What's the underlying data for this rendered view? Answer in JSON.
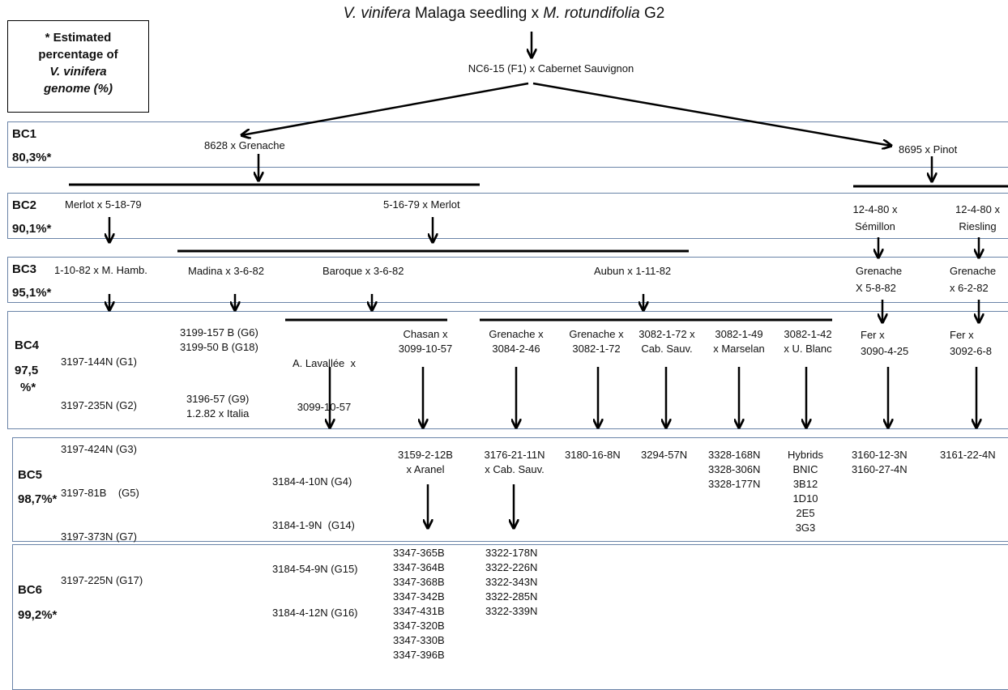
{
  "title": {
    "sp1": "V. vinifera",
    "p1": " Malaga seedling x ",
    "sp2": "M. rotundifolia",
    "p2": " G2"
  },
  "legend": {
    "line1": "* Estimated",
    "line2": "percentage of",
    "line3": "V. vinifera",
    "line4": "genome (%)"
  },
  "root": "NC6-15 (F1) x Cabernet Sauvignon",
  "bands": [
    {
      "label": "BC1",
      "pct": "80,3%*"
    },
    {
      "label": "BC2",
      "pct": "90,1%*"
    },
    {
      "label": "BC3",
      "pct": "95,1%*"
    },
    {
      "label": "BC4",
      "pct1": "97,5",
      "pct2": "%*"
    },
    {
      "label": "BC5",
      "pct": "98,7%*"
    },
    {
      "label": "BC6",
      "pct": "99,2%*"
    }
  ],
  "bc1": {
    "left": "8628 x Grenache",
    "right": "8695 x Pinot"
  },
  "bc2": {
    "a": "Merlot x 5-18-79",
    "b": "5-16-79 x Merlot",
    "c1": "12-4-80 x",
    "c2": "Sémillon",
    "d1": "12-4-80 x",
    "d2": "Riesling"
  },
  "bc3": {
    "a": "1-10-82 x M. Hamb.",
    "b": "Madina x 3-6-82",
    "c": "Baroque x 3-6-82",
    "d": "Aubun x 1-11-82",
    "e1": "Grenache",
    "e2": "X 5-8-82",
    "f1": "Grenache",
    "f2": "x 6-2-82"
  },
  "bc4": {
    "g1": [
      "3197-144N (G1)",
      "3197-235N (G2)",
      "3197-424N (G3)",
      "3197-81B    (G5)",
      "3197-373N (G7)",
      "3197-225N (G17)"
    ],
    "g2": [
      "3199-157 B (G6)",
      "3199-50 B (G18)"
    ],
    "g2b": [
      "3196-57 (G9)",
      "1.2.82 x Italia"
    ],
    "c1": [
      "A. Lavallée  x",
      "3099-10-57"
    ],
    "c2": [
      "Chasan x",
      "3099-10-57"
    ],
    "d1": [
      "Grenache x",
      "3084-2-46"
    ],
    "d2": [
      "Grenache x",
      "3082-1-72"
    ],
    "d3": [
      "3082-1-72 x",
      "Cab. Sauv."
    ],
    "d4": [
      "3082-1-49",
      "x Marselan"
    ],
    "d5": [
      "3082-1-42",
      "x U. Blanc"
    ],
    "e": [
      "Fer x",
      "3090-4-25"
    ],
    "f": [
      "Fer x",
      "3092-6-8"
    ]
  },
  "bc5": {
    "a": [
      "3184-4-10N (G4)",
      "3184-1-9N  (G14)",
      "3184-54-9N (G15)",
      "3184-4-12N (G16)"
    ],
    "b": [
      "3159-2-12B",
      "x Aranel"
    ],
    "c": [
      "3176-21-11N",
      "x Cab. Sauv."
    ],
    "d": "3180-16-8N",
    "e": "3294-57N",
    "f": [
      "3328-168N",
      "3328-306N",
      "3328-177N"
    ],
    "g": [
      "Hybrids",
      "BNIC",
      "3B12",
      "1D10",
      "2E5",
      "3G3"
    ],
    "h": [
      "3160-12-3N",
      "3160-27-4N"
    ],
    "i": "3161-22-4N"
  },
  "bc6": {
    "a": [
      "3347-365B",
      "3347-364B",
      "3347-368B",
      "3347-342B",
      "3347-431B",
      "3347-320B",
      "3347-330B",
      "3347-396B"
    ],
    "b": [
      "3322-178N",
      "3322-226N",
      "3322-343N",
      "3322-285N",
      "3322-339N"
    ]
  }
}
